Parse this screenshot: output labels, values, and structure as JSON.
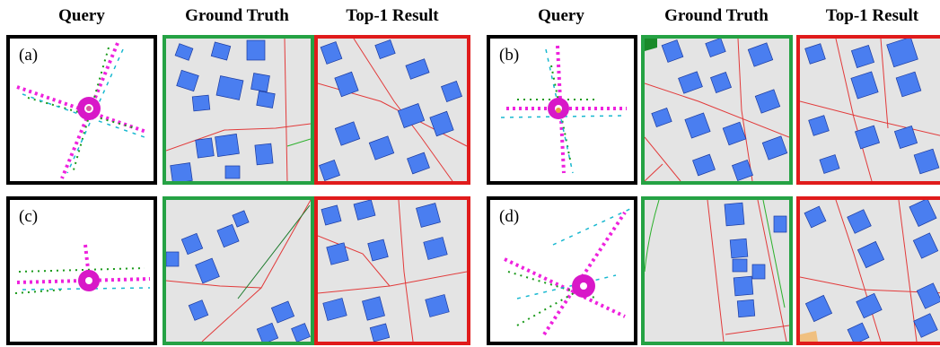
{
  "headers": {
    "query_left": "Query",
    "gt_left": "Ground Truth",
    "top_left": "Top-1 Result",
    "query_right": "Query",
    "gt_right": "Ground Truth",
    "top_right": "Top-1 Result"
  },
  "panel_labels": {
    "a": "(a)",
    "b": "(b)",
    "c": "(c)",
    "d": "(d)"
  },
  "colors": {
    "query_border": "#000000",
    "ground_truth_border": "#25a244",
    "top1_border": "#e01b1b",
    "building": "#4a7ef0",
    "road": "#e23a3a",
    "map_background": "#e4e4e4",
    "lidar_magenta": "#ee22dd",
    "lidar_green": "#1a9a1a",
    "lidar_cyan": "#18b8d0"
  }
}
